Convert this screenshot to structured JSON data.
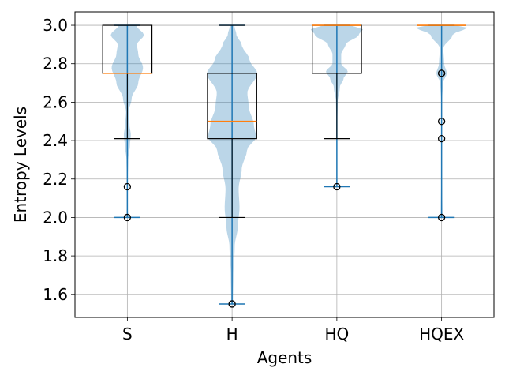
{
  "chart_data": {
    "type": "violin+box",
    "title": "",
    "xlabel": "Agents",
    "ylabel": "Entropy Levels",
    "ylim": [
      1.48,
      3.07
    ],
    "yticks": [
      1.6,
      1.8,
      2.0,
      2.2,
      2.4,
      2.6,
      2.8,
      3.0
    ],
    "ytick_labels": [
      "1.6",
      "1.8",
      "2.0",
      "2.2",
      "2.4",
      "2.6",
      "2.8",
      "3.0"
    ],
    "categories": [
      "S",
      "H",
      "HQ",
      "HQEX"
    ],
    "grid": true,
    "colors": {
      "violin_fill": "#1f77b4",
      "violin_lines": "#1f77b4",
      "box": "#000000",
      "median": "#ff7f0e",
      "grid": "#b0b0b0"
    },
    "series": [
      {
        "name": "S",
        "violin_min": 2.0,
        "violin_max": 3.0,
        "box": {
          "whisker_low": 2.41,
          "q1": 2.75,
          "median": 2.75,
          "q3": 3.0,
          "whisker_high": 3.0
        },
        "outliers": [
          2.16,
          2.0
        ],
        "density": [
          [
            2.0,
            0.02
          ],
          [
            2.05,
            0.01
          ],
          [
            2.1,
            0.01
          ],
          [
            2.2,
            0.01
          ],
          [
            2.3,
            0.02
          ],
          [
            2.38,
            0.06
          ],
          [
            2.43,
            0.08
          ],
          [
            2.48,
            0.05
          ],
          [
            2.55,
            0.03
          ],
          [
            2.62,
            0.1
          ],
          [
            2.7,
            0.25
          ],
          [
            2.78,
            0.36
          ],
          [
            2.85,
            0.25
          ],
          [
            2.9,
            0.22
          ],
          [
            2.95,
            0.38
          ],
          [
            3.0,
            0.2
          ]
        ]
      },
      {
        "name": "H",
        "violin_min": 1.55,
        "violin_max": 3.0,
        "box": {
          "whisker_low": 2.0,
          "q1": 2.41,
          "median": 2.5,
          "q3": 2.75,
          "whisker_high": 3.0
        },
        "outliers": [
          1.55
        ],
        "density": [
          [
            1.55,
            0.02
          ],
          [
            1.7,
            0.03
          ],
          [
            1.85,
            0.06
          ],
          [
            1.95,
            0.13
          ],
          [
            2.05,
            0.17
          ],
          [
            2.15,
            0.15
          ],
          [
            2.25,
            0.22
          ],
          [
            2.35,
            0.34
          ],
          [
            2.42,
            0.55
          ],
          [
            2.48,
            0.5
          ],
          [
            2.58,
            0.38
          ],
          [
            2.65,
            0.35
          ],
          [
            2.75,
            0.58
          ],
          [
            2.82,
            0.4
          ],
          [
            2.9,
            0.22
          ],
          [
            2.95,
            0.1
          ],
          [
            3.0,
            0.05
          ]
        ]
      },
      {
        "name": "HQ",
        "violin_min": 2.16,
        "violin_max": 3.0,
        "box": {
          "whisker_low": 2.41,
          "q1": 2.75,
          "median": 3.0,
          "q3": 3.0,
          "whisker_high": 3.0
        },
        "outliers": [
          2.16
        ],
        "density": [
          [
            2.16,
            0.01
          ],
          [
            2.25,
            0.01
          ],
          [
            2.35,
            0.01
          ],
          [
            2.41,
            0.01
          ],
          [
            2.5,
            0.01
          ],
          [
            2.6,
            0.02
          ],
          [
            2.68,
            0.07
          ],
          [
            2.72,
            0.15
          ],
          [
            2.76,
            0.25
          ],
          [
            2.8,
            0.1
          ],
          [
            2.85,
            0.1
          ],
          [
            2.9,
            0.2
          ],
          [
            2.95,
            0.5
          ],
          [
            2.98,
            0.6
          ],
          [
            3.0,
            0.3
          ]
        ]
      },
      {
        "name": "HQEX",
        "violin_min": 2.0,
        "violin_max": 3.0,
        "box": {
          "whisker_low": 3.0,
          "q1": 3.0,
          "median": 3.0,
          "q3": 3.0,
          "whisker_high": 3.0
        },
        "outliers": [
          2.75,
          2.75,
          2.5,
          2.41,
          2.0
        ],
        "density": [
          [
            2.0,
            0.02
          ],
          [
            2.2,
            0.01
          ],
          [
            2.4,
            0.01
          ],
          [
            2.6,
            0.01
          ],
          [
            2.7,
            0.03
          ],
          [
            2.75,
            0.12
          ],
          [
            2.8,
            0.06
          ],
          [
            2.88,
            0.04
          ],
          [
            2.95,
            0.25
          ],
          [
            2.99,
            0.6
          ],
          [
            3.0,
            0.3
          ]
        ]
      }
    ]
  }
}
